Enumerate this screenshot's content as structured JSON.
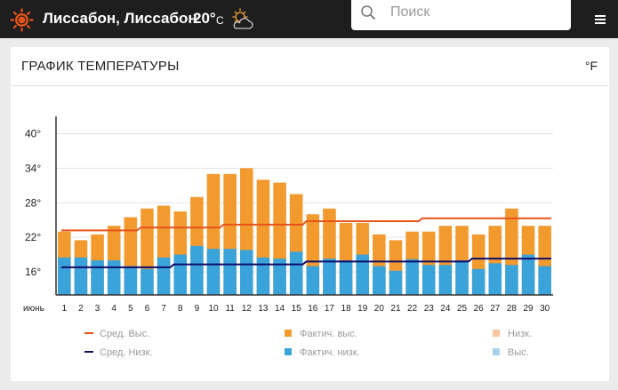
{
  "header": {
    "location": "Лиссабон, Лиссабон",
    "temperature": "20°",
    "temperature_unit": "C",
    "logo_icon": "sun-logo-icon",
    "weather_icon": "partly-cloudy-icon",
    "accent_color": "#e8531c"
  },
  "search": {
    "placeholder": "Поиск",
    "icon": "search-icon"
  },
  "menu": {
    "icon": "hamburger-menu-icon"
  },
  "card": {
    "title": "ГРАФИК ТЕМПЕРАТУРЫ",
    "unit_toggle": "°F"
  },
  "chart_data": {
    "type": "bar",
    "title": "",
    "month_label": "июнь",
    "y_ticks": [
      "40°",
      "34°",
      "28°",
      "22°",
      "16°"
    ],
    "ylim": [
      12,
      43
    ],
    "categories": [
      "1",
      "2",
      "3",
      "4",
      "5",
      "6",
      "7",
      "8",
      "9",
      "10",
      "11",
      "12",
      "13",
      "14",
      "15",
      "16",
      "17",
      "18",
      "19",
      "20",
      "21",
      "22",
      "23",
      "24",
      "25",
      "26",
      "27",
      "28",
      "29",
      "30"
    ],
    "series": [
      {
        "name": "Фактич. выс.",
        "kind": "bar",
        "color": "#f29a2e",
        "values": [
          23,
          21.5,
          22.5,
          24,
          25.5,
          27,
          27.5,
          26.5,
          29,
          33,
          33,
          34,
          32,
          31.5,
          29.5,
          26,
          27,
          24.5,
          24.5,
          22.5,
          21.5,
          23,
          23,
          24,
          24,
          22.5,
          24,
          27,
          24,
          24
        ]
      },
      {
        "name": "Фактич. низк.",
        "kind": "bar",
        "color": "#3aa3d9",
        "values": [
          18.5,
          18.5,
          18,
          18,
          17,
          16.5,
          18.5,
          19,
          20.5,
          20,
          20,
          19.8,
          18.5,
          18.3,
          19.5,
          17,
          18.3,
          18,
          19,
          17,
          16.2,
          18.2,
          17.2,
          17.2,
          18,
          16.5,
          17.5,
          17.2,
          19,
          17
        ]
      },
      {
        "name": "Сред. Выс.",
        "kind": "line",
        "color": "#e8531c",
        "values": [
          23.2,
          23.2,
          23.2,
          23.2,
          23.2,
          23.7,
          23.7,
          23.7,
          23.7,
          23.7,
          24.2,
          24.2,
          24.2,
          24.2,
          24.2,
          24.8,
          24.8,
          24.8,
          24.8,
          24.8,
          24.8,
          24.8,
          25.3,
          25.3,
          25.3,
          25.3,
          25.3,
          25.3,
          25.3,
          25.3
        ]
      },
      {
        "name": "Сред. Низк.",
        "kind": "line",
        "color": "#0d0d6b",
        "values": [
          16.8,
          16.8,
          16.8,
          16.8,
          16.8,
          16.8,
          16.8,
          17.3,
          17.3,
          17.3,
          17.3,
          17.3,
          17.3,
          17.3,
          17.3,
          17.8,
          17.8,
          17.8,
          17.8,
          17.8,
          17.8,
          17.8,
          17.8,
          17.8,
          17.8,
          18.3,
          18.3,
          18.3,
          18.3,
          18.3
        ]
      }
    ],
    "legend": [
      {
        "label": "Сред. Выс.",
        "swatch": "line",
        "color": "#e8531c"
      },
      {
        "label": "Фактич. выс.",
        "swatch": "box",
        "color": "#f29a2e"
      },
      {
        "label": "Низк.",
        "swatch": "box",
        "color": "#f6c7a0"
      },
      {
        "label": "Сред. Низк.",
        "swatch": "line",
        "color": "#0d0d6b"
      },
      {
        "label": "Фактич. низк.",
        "swatch": "box",
        "color": "#3aa3d9"
      },
      {
        "label": "Выс.",
        "swatch": "box",
        "color": "#a6d2ea"
      }
    ],
    "grid": true,
    "legend_position": "bottom"
  }
}
